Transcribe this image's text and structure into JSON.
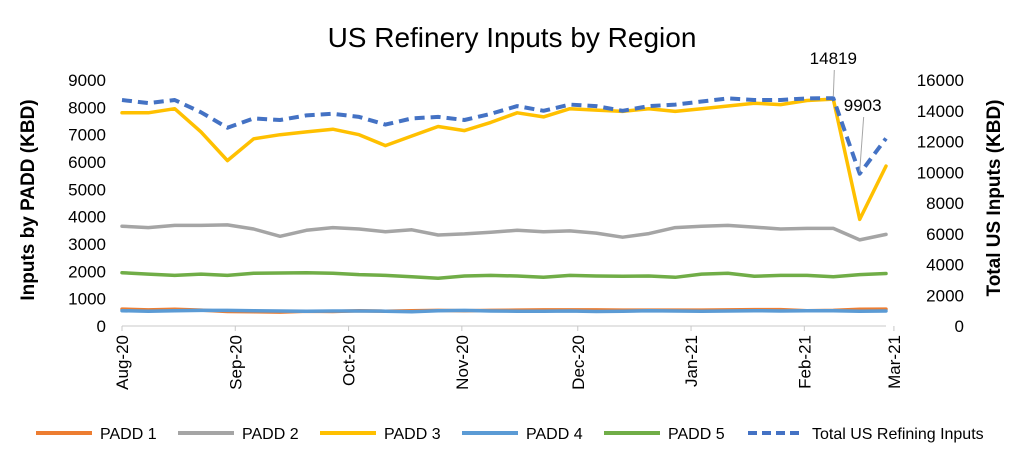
{
  "chart_data": {
    "type": "line",
    "title": "US Refinery Inputs by Region",
    "ylabel_left": "Inputs by PADD (KBD)",
    "ylabel_right": "Total US Inputs (KBD)",
    "ylim_left": [
      0,
      9000
    ],
    "ylim_right": [
      0,
      16000
    ],
    "yticks_left": [
      "0",
      "1000",
      "2000",
      "3000",
      "4000",
      "5000",
      "6000",
      "7000",
      "8000",
      "9000"
    ],
    "yticks_right": [
      "0",
      "2000",
      "4000",
      "6000",
      "8000",
      "10000",
      "12000",
      "14000",
      "16000"
    ],
    "x_tick_labels": [
      "Aug-20",
      "Sep-20",
      "Oct-20",
      "Nov-20",
      "Dec-20",
      "Jan-21",
      "Feb-21",
      "Mar-21"
    ],
    "x_tick_index": [
      0,
      4.3,
      8.6,
      12.9,
      17.3,
      21.6,
      25.9,
      29.3
    ],
    "grid": false,
    "legend_position": "bottom",
    "x_count": 30,
    "series": [
      {
        "name": "PADD 1",
        "color": "#ED7D31",
        "dashed": false,
        "axis": "left",
        "values": [
          620,
          590,
          610,
          580,
          530,
          520,
          510,
          540,
          530,
          560,
          540,
          560,
          570,
          560,
          570,
          580,
          590,
          590,
          590,
          580,
          580,
          580,
          580,
          590,
          600,
          600,
          560,
          570,
          610,
          620
        ]
      },
      {
        "name": "PADD 2",
        "color": "#A5A5A5",
        "dashed": false,
        "axis": "left",
        "values": [
          3650,
          3600,
          3680,
          3680,
          3700,
          3550,
          3280,
          3500,
          3600,
          3550,
          3450,
          3520,
          3330,
          3370,
          3430,
          3500,
          3450,
          3480,
          3400,
          3250,
          3380,
          3600,
          3650,
          3680,
          3620,
          3550,
          3570,
          3570,
          3150,
          3350
        ]
      },
      {
        "name": "PADD 3",
        "color": "#FFC000",
        "dashed": false,
        "axis": "left",
        "values": [
          7800,
          7800,
          7950,
          7100,
          6050,
          6850,
          7000,
          7100,
          7200,
          7000,
          6600,
          6950,
          7300,
          7150,
          7450,
          7800,
          7650,
          7950,
          7900,
          7850,
          7950,
          7850,
          7950,
          8050,
          8150,
          8100,
          8250,
          8300,
          3900,
          5850
        ]
      },
      {
        "name": "PADD 4",
        "color": "#5B9BD5",
        "dashed": false,
        "axis": "left",
        "values": [
          560,
          540,
          560,
          570,
          570,
          560,
          550,
          540,
          550,
          550,
          540,
          520,
          560,
          570,
          550,
          540,
          540,
          550,
          530,
          540,
          560,
          550,
          540,
          550,
          560,
          550,
          560,
          560,
          540,
          550
        ]
      },
      {
        "name": "PADD 5",
        "color": "#70AD47",
        "dashed": false,
        "axis": "left",
        "values": [
          1950,
          1900,
          1850,
          1900,
          1850,
          1930,
          1940,
          1950,
          1930,
          1880,
          1850,
          1800,
          1750,
          1830,
          1850,
          1830,
          1780,
          1850,
          1830,
          1820,
          1830,
          1780,
          1900,
          1930,
          1820,
          1850,
          1850,
          1800,
          1880,
          1920
        ]
      },
      {
        "name": "Total US Refining Inputs",
        "color": "#4472C4",
        "dashed": true,
        "axis": "right",
        "values": [
          14700,
          14500,
          14700,
          13900,
          12900,
          13500,
          13400,
          13700,
          13800,
          13600,
          13100,
          13500,
          13600,
          13400,
          13800,
          14300,
          14000,
          14400,
          14300,
          14000,
          14300,
          14400,
          14600,
          14800,
          14700,
          14700,
          14800,
          14819,
          9903,
          12200
        ]
      }
    ],
    "annotations": [
      {
        "text": "14819",
        "series": "Total US Refining Inputs",
        "index": 27
      },
      {
        "text": "9903",
        "series": "Total US Refining Inputs",
        "index": 28
      }
    ]
  }
}
